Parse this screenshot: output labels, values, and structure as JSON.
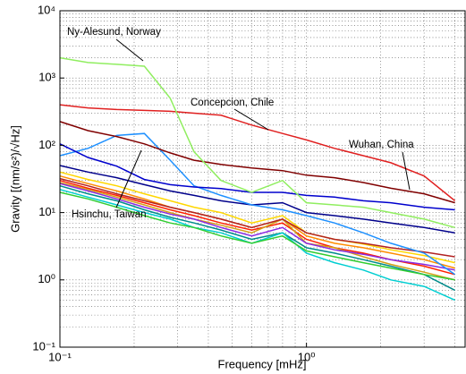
{
  "chart_data": {
    "type": "line",
    "xlabel": "Frequency [mHz]",
    "ylabel": "Gravity [(nm/s²)/√Hz]",
    "annotations": [
      "Ny-Alesund, Norway",
      "Concepcion, Chile",
      "Wuhan, China",
      "Hsinchu, Taiwan"
    ],
    "xscale": "log",
    "yscale": "log",
    "grid": true,
    "minor_grid": true,
    "xlim": [
      0.1,
      4.4
    ],
    "ylim": [
      0.1,
      10000
    ],
    "xticks": [
      {
        "value": 0.1,
        "label": "10⁻¹"
      },
      {
        "value": 1,
        "label": "10⁰"
      }
    ],
    "yticks": [
      {
        "value": 0.1,
        "label": "10⁻¹"
      },
      {
        "value": 1,
        "label": "10⁰"
      },
      {
        "value": 10,
        "label": "10¹"
      },
      {
        "value": 100,
        "label": "10²"
      },
      {
        "value": 1000,
        "label": "10³"
      },
      {
        "value": 10000,
        "label": "10⁴"
      }
    ],
    "x": [
      0.1,
      0.13,
      0.17,
      0.22,
      0.28,
      0.35,
      0.45,
      0.6,
      0.8,
      1.0,
      1.3,
      1.7,
      2.2,
      3,
      4
    ],
    "series": [
      {
        "color": "#00008b",
        "values": [
          50,
          40,
          33,
          26,
          21,
          18,
          15,
          13,
          14,
          10,
          9,
          8,
          7,
          6,
          5
        ]
      },
      {
        "color": "#ffd700",
        "values": [
          40,
          31,
          25,
          19,
          15,
          12,
          10,
          7,
          9,
          5,
          4,
          3.4,
          2.8,
          2.3,
          1.8
        ]
      },
      {
        "color": "#ff8c00",
        "values": [
          35,
          27,
          21,
          16,
          12,
          10,
          8,
          6,
          8,
          4.5,
          3.5,
          3,
          2.5,
          2,
          1.5
        ]
      },
      {
        "color": "#ff2000",
        "values": [
          30,
          23,
          18,
          14,
          11,
          9,
          7,
          5.5,
          7,
          4,
          3,
          2.5,
          2,
          1.6,
          1.2
        ]
      },
      {
        "color": "#d4a017",
        "values": [
          28,
          22,
          17,
          13,
          10,
          8,
          6.5,
          5,
          8,
          3.5,
          3,
          2.2,
          1.7,
          1.3,
          1
        ]
      },
      {
        "color": "#008b8b",
        "values": [
          25,
          19,
          15,
          11,
          8.5,
          7,
          5.5,
          4,
          5,
          3,
          2.5,
          2,
          1.6,
          1.2,
          0.7
        ]
      },
      {
        "color": "#8a2be2",
        "values": [
          27,
          21,
          16,
          12,
          9.5,
          8,
          6,
          4.5,
          6,
          3.5,
          2.8,
          2.4,
          2,
          1.7,
          1.4
        ]
      },
      {
        "color": "#00ced1",
        "values": [
          22,
          17,
          13,
          10,
          8,
          6,
          5,
          3.5,
          5,
          2.5,
          1.8,
          1.4,
          1,
          0.8,
          0.5
        ]
      },
      {
        "color": "#b22222",
        "values": [
          32,
          25,
          19,
          15,
          12,
          10,
          8,
          6,
          8,
          5,
          4,
          3.5,
          3,
          2.6,
          2.2
        ]
      },
      {
        "color": "#32cd32",
        "values": [
          20,
          16,
          12,
          9,
          7,
          6,
          4.5,
          3.5,
          4.5,
          2.7,
          2.2,
          1.8,
          1.5,
          1.2,
          1
        ]
      },
      {
        "color": "#1e90ff",
        "values": [
          70,
          90,
          140,
          150,
          60,
          25,
          18,
          13,
          11,
          9,
          7,
          5,
          3.5,
          2.5,
          1.2
        ]
      },
      {
        "color": "#0000cd",
        "values": [
          105,
          66,
          49,
          31,
          26,
          24,
          22.7,
          20,
          20,
          18,
          17,
          15,
          14,
          12,
          11
        ]
      },
      {
        "color": "#800000",
        "values": [
          225,
          165,
          135,
          105,
          77,
          60,
          52,
          46,
          42,
          36,
          33,
          28,
          23,
          19,
          14
        ]
      },
      {
        "color": "#e02020",
        "values": [
          400,
          360,
          340,
          330,
          320,
          300,
          280,
          200,
          150,
          120,
          90,
          70,
          55,
          35,
          15
        ]
      },
      {
        "color": "#90ee60",
        "values": [
          2000,
          1700,
          1600,
          1500,
          500,
          80,
          30,
          20,
          30,
          14,
          13,
          12,
          10,
          8,
          6
        ]
      }
    ]
  }
}
